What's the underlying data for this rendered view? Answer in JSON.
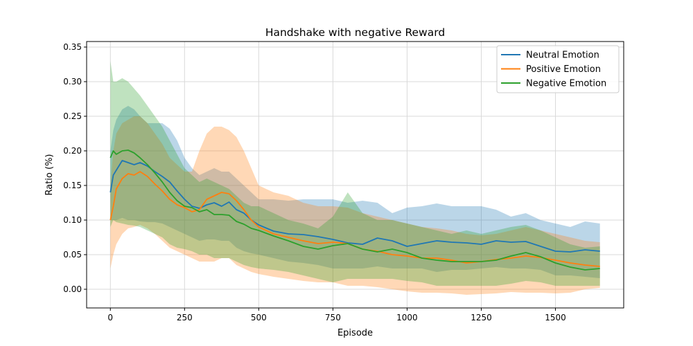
{
  "chart_data": {
    "type": "line",
    "title": "Handshake with negative Reward",
    "xlabel": "Episode",
    "ylabel": "Ratio (%)",
    "xlim": [
      -80,
      1730
    ],
    "ylim": [
      -0.027,
      0.358
    ],
    "xticks": [
      0,
      250,
      500,
      750,
      1000,
      1250,
      1500
    ],
    "yticks": [
      0.0,
      0.05,
      0.1,
      0.15,
      0.2,
      0.25,
      0.3,
      0.35
    ],
    "xtick_labels": [
      "0",
      "250",
      "500",
      "750",
      "1000",
      "1250",
      "1500"
    ],
    "ytick_labels": [
      "0.00",
      "0.05",
      "0.10",
      "0.15",
      "0.20",
      "0.25",
      "0.30",
      "0.35"
    ],
    "grid": true,
    "legend_position": "top-right",
    "series": [
      {
        "name": "Neutral Emotion",
        "color": "#1f77b4",
        "x": [
          0,
          10,
          20,
          40,
          60,
          80,
          100,
          125,
          150,
          175,
          200,
          225,
          250,
          275,
          300,
          325,
          350,
          375,
          400,
          425,
          450,
          475,
          500,
          550,
          600,
          650,
          700,
          750,
          800,
          850,
          900,
          950,
          1000,
          1050,
          1100,
          1150,
          1200,
          1250,
          1300,
          1350,
          1400,
          1450,
          1500,
          1550,
          1600,
          1650
        ],
        "y": [
          0.14,
          0.165,
          0.172,
          0.186,
          0.183,
          0.18,
          0.183,
          0.178,
          0.17,
          0.163,
          0.155,
          0.142,
          0.13,
          0.12,
          0.117,
          0.122,
          0.125,
          0.12,
          0.126,
          0.115,
          0.11,
          0.1,
          0.093,
          0.084,
          0.08,
          0.079,
          0.076,
          0.072,
          0.067,
          0.065,
          0.074,
          0.07,
          0.062,
          0.066,
          0.07,
          0.068,
          0.067,
          0.065,
          0.07,
          0.068,
          0.069,
          0.062,
          0.055,
          0.054,
          0.057,
          0.055
        ],
        "upper": [
          0.2,
          0.23,
          0.245,
          0.26,
          0.265,
          0.26,
          0.25,
          0.24,
          0.24,
          0.24,
          0.232,
          0.215,
          0.19,
          0.175,
          0.165,
          0.17,
          0.175,
          0.17,
          0.17,
          0.16,
          0.15,
          0.14,
          0.13,
          0.13,
          0.128,
          0.13,
          0.13,
          0.13,
          0.125,
          0.128,
          0.125,
          0.11,
          0.118,
          0.12,
          0.124,
          0.12,
          0.12,
          0.12,
          0.115,
          0.105,
          0.11,
          0.1,
          0.095,
          0.09,
          0.098,
          0.095
        ],
        "lower": [
          0.1,
          0.1,
          0.1,
          0.103,
          0.1,
          0.1,
          0.098,
          0.097,
          0.097,
          0.095,
          0.09,
          0.085,
          0.08,
          0.075,
          0.07,
          0.072,
          0.072,
          0.07,
          0.07,
          0.06,
          0.055,
          0.052,
          0.05,
          0.045,
          0.04,
          0.038,
          0.035,
          0.03,
          0.03,
          0.03,
          0.033,
          0.03,
          0.03,
          0.03,
          0.025,
          0.028,
          0.028,
          0.03,
          0.032,
          0.03,
          0.03,
          0.028,
          0.02,
          0.02,
          0.018,
          0.016
        ]
      },
      {
        "name": "Positive Emotion",
        "color": "#ff7f0e",
        "x": [
          0,
          10,
          20,
          40,
          60,
          80,
          100,
          125,
          150,
          175,
          200,
          225,
          250,
          275,
          300,
          325,
          350,
          375,
          400,
          425,
          450,
          475,
          500,
          550,
          600,
          650,
          700,
          750,
          800,
          850,
          900,
          950,
          1000,
          1050,
          1100,
          1150,
          1200,
          1250,
          1300,
          1350,
          1400,
          1450,
          1500,
          1550,
          1600,
          1650
        ],
        "y": [
          0.1,
          0.12,
          0.145,
          0.16,
          0.167,
          0.165,
          0.17,
          0.163,
          0.152,
          0.142,
          0.13,
          0.122,
          0.118,
          0.112,
          0.115,
          0.13,
          0.135,
          0.14,
          0.138,
          0.128,
          0.115,
          0.1,
          0.09,
          0.08,
          0.075,
          0.07,
          0.066,
          0.068,
          0.066,
          0.058,
          0.055,
          0.05,
          0.048,
          0.045,
          0.045,
          0.042,
          0.038,
          0.04,
          0.043,
          0.045,
          0.048,
          0.046,
          0.042,
          0.038,
          0.035,
          0.033
        ],
        "upper": [
          0.15,
          0.2,
          0.225,
          0.24,
          0.245,
          0.25,
          0.25,
          0.24,
          0.225,
          0.21,
          0.19,
          0.18,
          0.17,
          0.17,
          0.2,
          0.225,
          0.235,
          0.235,
          0.23,
          0.22,
          0.2,
          0.175,
          0.15,
          0.14,
          0.135,
          0.125,
          0.12,
          0.12,
          0.118,
          0.11,
          0.105,
          0.1,
          0.095,
          0.09,
          0.088,
          0.085,
          0.08,
          0.078,
          0.08,
          0.085,
          0.09,
          0.085,
          0.08,
          0.075,
          0.07,
          0.068
        ],
        "lower": [
          0.03,
          0.05,
          0.065,
          0.08,
          0.088,
          0.09,
          0.093,
          0.088,
          0.08,
          0.07,
          0.06,
          0.055,
          0.05,
          0.045,
          0.04,
          0.04,
          0.04,
          0.045,
          0.045,
          0.035,
          0.03,
          0.025,
          0.022,
          0.018,
          0.015,
          0.012,
          0.01,
          0.01,
          0.005,
          0.005,
          0.003,
          0.0,
          -0.003,
          -0.005,
          -0.005,
          -0.006,
          -0.008,
          -0.007,
          -0.006,
          -0.004,
          -0.005,
          -0.005,
          -0.006,
          -0.005,
          0.0,
          0.002
        ]
      },
      {
        "name": "Negative Emotion",
        "color": "#2ca02c",
        "x": [
          0,
          10,
          20,
          40,
          60,
          80,
          100,
          125,
          150,
          175,
          200,
          225,
          250,
          275,
          300,
          325,
          350,
          375,
          400,
          425,
          450,
          475,
          500,
          550,
          600,
          650,
          700,
          750,
          800,
          850,
          900,
          950,
          1000,
          1050,
          1100,
          1150,
          1200,
          1250,
          1300,
          1350,
          1400,
          1450,
          1500,
          1550,
          1600,
          1650
        ],
        "y": [
          0.19,
          0.2,
          0.195,
          0.2,
          0.201,
          0.197,
          0.19,
          0.18,
          0.168,
          0.155,
          0.14,
          0.128,
          0.12,
          0.118,
          0.112,
          0.115,
          0.108,
          0.108,
          0.107,
          0.098,
          0.094,
          0.088,
          0.085,
          0.077,
          0.07,
          0.062,
          0.058,
          0.063,
          0.066,
          0.058,
          0.054,
          0.058,
          0.053,
          0.045,
          0.042,
          0.04,
          0.04,
          0.04,
          0.042,
          0.048,
          0.053,
          0.047,
          0.038,
          0.032,
          0.028,
          0.03
        ],
        "upper": [
          0.33,
          0.3,
          0.3,
          0.305,
          0.3,
          0.29,
          0.28,
          0.265,
          0.25,
          0.235,
          0.215,
          0.195,
          0.175,
          0.165,
          0.155,
          0.16,
          0.155,
          0.15,
          0.145,
          0.135,
          0.125,
          0.12,
          0.12,
          0.11,
          0.1,
          0.095,
          0.088,
          0.105,
          0.14,
          0.11,
          0.1,
          0.1,
          0.095,
          0.09,
          0.085,
          0.08,
          0.085,
          0.08,
          0.085,
          0.09,
          0.093,
          0.085,
          0.075,
          0.065,
          0.06,
          0.062
        ],
        "lower": [
          0.09,
          0.1,
          0.097,
          0.095,
          0.093,
          0.092,
          0.09,
          0.085,
          0.08,
          0.075,
          0.065,
          0.06,
          0.058,
          0.055,
          0.05,
          0.05,
          0.045,
          0.045,
          0.045,
          0.04,
          0.035,
          0.032,
          0.03,
          0.028,
          0.025,
          0.02,
          0.015,
          0.01,
          0.015,
          0.015,
          0.015,
          0.015,
          0.012,
          0.01,
          0.005,
          0.005,
          0.005,
          0.005,
          0.005,
          0.008,
          0.012,
          0.01,
          0.005,
          0.005,
          0.005,
          0.005
        ]
      }
    ]
  }
}
